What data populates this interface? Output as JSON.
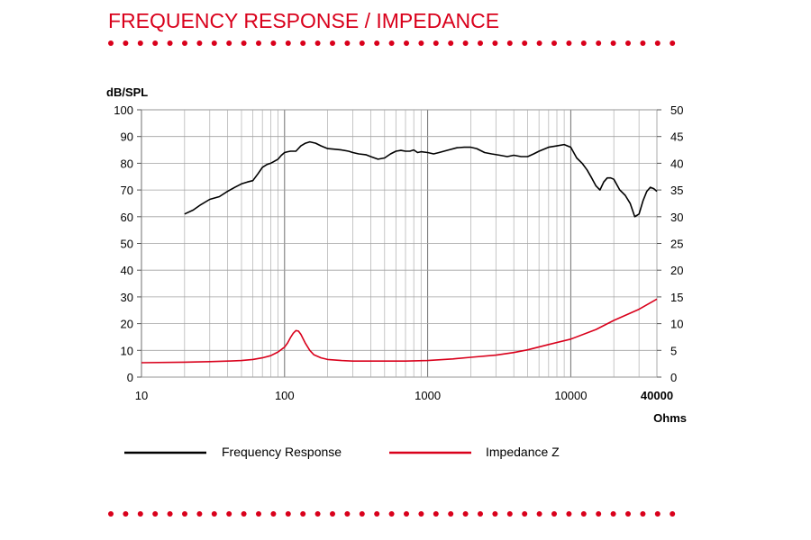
{
  "page": {
    "title": "FREQUENCY RESPONSE / IMPEDANCE",
    "accent_color": "#d9001b"
  },
  "chart_data": {
    "type": "line",
    "scale_x": "log",
    "grid": true,
    "xlim": [
      10,
      40000
    ],
    "ylim": [
      0,
      100
    ],
    "y2lim": [
      0,
      50
    ],
    "ylabel": "dB/SPL",
    "y2label": "Ohms",
    "x_ticks": [
      10,
      100,
      1000,
      10000,
      40000
    ],
    "x_tick_labels": [
      "10",
      "100",
      "1000",
      "10000",
      "40000"
    ],
    "y_ticks": [
      0,
      10,
      20,
      30,
      40,
      50,
      60,
      70,
      80,
      90,
      100
    ],
    "y_tick_labels": [
      "0",
      "10",
      "20",
      "30",
      "40",
      "50",
      "60",
      "70",
      "80",
      "90",
      "100"
    ],
    "y2_ticks": [
      0,
      5,
      10,
      15,
      20,
      25,
      30,
      35,
      40,
      45,
      50
    ],
    "y2_tick_labels": [
      "0",
      "5",
      "10",
      "15",
      "20",
      "25",
      "30",
      "35",
      "40",
      "45",
      "50"
    ],
    "legend_position": "bottom",
    "series": [
      {
        "name": "Frequency Response",
        "color": "#000000",
        "axis": "left",
        "x": [
          20,
          23,
          26,
          30,
          35,
          40,
          45,
          50,
          55,
          60,
          65,
          70,
          75,
          80,
          90,
          95,
          100,
          105,
          110,
          120,
          130,
          140,
          150,
          165,
          180,
          200,
          220,
          250,
          280,
          300,
          330,
          370,
          400,
          450,
          500,
          550,
          600,
          650,
          700,
          750,
          800,
          850,
          900,
          1000,
          1100,
          1200,
          1400,
          1600,
          1800,
          2000,
          2200,
          2500,
          2800,
          3200,
          3600,
          4000,
          4500,
          5000,
          5500,
          6000,
          7000,
          8000,
          9000,
          10000,
          11000,
          12000,
          13000,
          14000,
          15000,
          16000,
          17000,
          18000,
          19000,
          20000,
          22000,
          24000,
          26000,
          28000,
          30000,
          32000,
          34000,
          36000,
          38000,
          40000
        ],
        "y": [
          61,
          62.5,
          64.5,
          66.5,
          67.5,
          69.5,
          71,
          72.3,
          73,
          73.5,
          76,
          78.5,
          79.5,
          80,
          81.5,
          83,
          84,
          84.3,
          84.5,
          84.5,
          86.5,
          87.5,
          88,
          87.5,
          86.5,
          85.5,
          85.3,
          85,
          84.5,
          84,
          83.5,
          83.2,
          82.5,
          81.5,
          82,
          83.5,
          84.5,
          84.8,
          84.5,
          84.5,
          85,
          84,
          84.3,
          84,
          83.5,
          84,
          85,
          85.8,
          86,
          86,
          85.5,
          84,
          83.5,
          83,
          82.5,
          83,
          82.5,
          82.5,
          83.5,
          84.5,
          86,
          86.5,
          87,
          86,
          82,
          80,
          77.5,
          74.5,
          71.5,
          70,
          73,
          74.5,
          74.5,
          74,
          70,
          68,
          65,
          60,
          61,
          66,
          69.5,
          71,
          70.5,
          69.5
        ]
      },
      {
        "name": "Impedance Z",
        "color": "#d9001b",
        "axis": "right",
        "x": [
          10,
          20,
          30,
          40,
          50,
          60,
          70,
          80,
          90,
          100,
          105,
          110,
          115,
          120,
          125,
          130,
          140,
          150,
          160,
          180,
          200,
          250,
          300,
          400,
          500,
          700,
          1000,
          1500,
          2000,
          3000,
          4000,
          5000,
          7000,
          10000,
          15000,
          20000,
          30000,
          40000
        ],
        "y": [
          2.7,
          2.8,
          2.9,
          3.0,
          3.1,
          3.3,
          3.6,
          4.0,
          4.7,
          5.6,
          6.4,
          7.4,
          8.2,
          8.7,
          8.6,
          8.0,
          6.3,
          5.0,
          4.2,
          3.6,
          3.3,
          3.1,
          3.0,
          3.0,
          3.0,
          3.0,
          3.1,
          3.4,
          3.7,
          4.1,
          4.6,
          5.1,
          6.1,
          7.1,
          8.9,
          10.6,
          12.7,
          14.6
        ]
      }
    ]
  }
}
